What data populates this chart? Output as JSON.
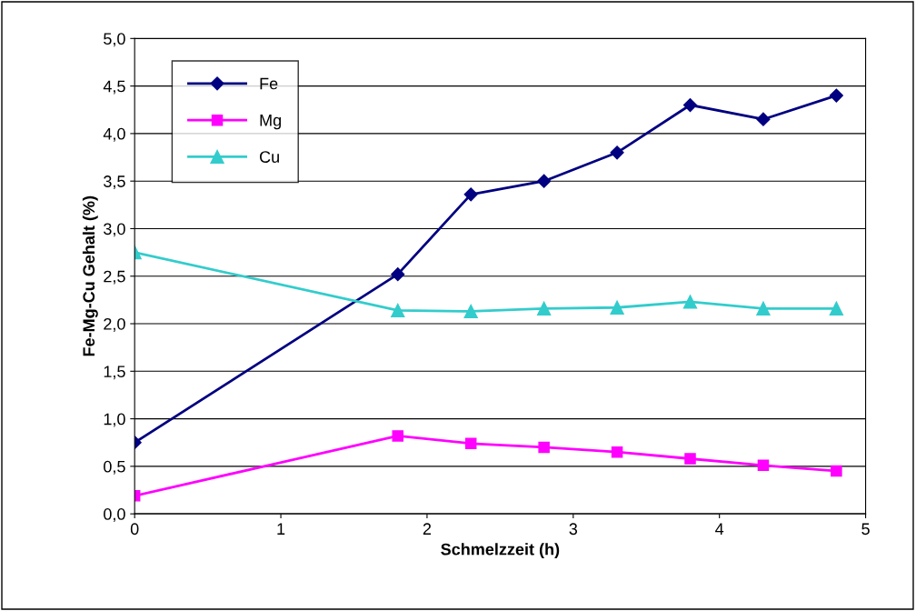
{
  "chart_data": {
    "type": "line",
    "xlabel": "Schmelzzeit (h)",
    "ylabel": "Fe-Mg-Cu Gehalt (%)",
    "x": [
      0,
      1.8,
      2.3,
      2.8,
      3.3,
      3.8,
      4.3,
      4.8
    ],
    "series": [
      {
        "name": "Fe",
        "color": "#000080",
        "marker": "diamond",
        "values": [
          0.75,
          2.52,
          3.36,
          3.5,
          3.8,
          4.3,
          4.15,
          4.4
        ]
      },
      {
        "name": "Mg",
        "color": "#ff00ff",
        "marker": "square",
        "values": [
          0.19,
          0.82,
          0.74,
          0.7,
          0.65,
          0.58,
          0.51,
          0.45
        ]
      },
      {
        "name": "Cu",
        "color": "#33cccc",
        "marker": "triangle",
        "values": [
          2.75,
          2.14,
          2.13,
          2.16,
          2.17,
          2.23,
          2.16,
          2.16
        ]
      }
    ],
    "xlim": [
      0,
      5
    ],
    "xticks": [
      0,
      1,
      2,
      3,
      4,
      5
    ],
    "ylim": [
      0,
      5
    ],
    "yticks": [
      {
        "value": 0,
        "label": "0,0"
      },
      {
        "value": 0.5,
        "label": "0,5"
      },
      {
        "value": 1,
        "label": "1,0"
      },
      {
        "value": 1.5,
        "label": "1,5"
      },
      {
        "value": 2,
        "label": "2,0"
      },
      {
        "value": 2.5,
        "label": "2,5"
      },
      {
        "value": 3,
        "label": "3,0"
      },
      {
        "value": 3.5,
        "label": "3,5"
      },
      {
        "value": 4,
        "label": "4,0"
      },
      {
        "value": 4.5,
        "label": "4,5"
      },
      {
        "value": 5,
        "label": "5,0"
      }
    ],
    "grid": "y",
    "legend": "top left",
    "line_style": "solid"
  }
}
